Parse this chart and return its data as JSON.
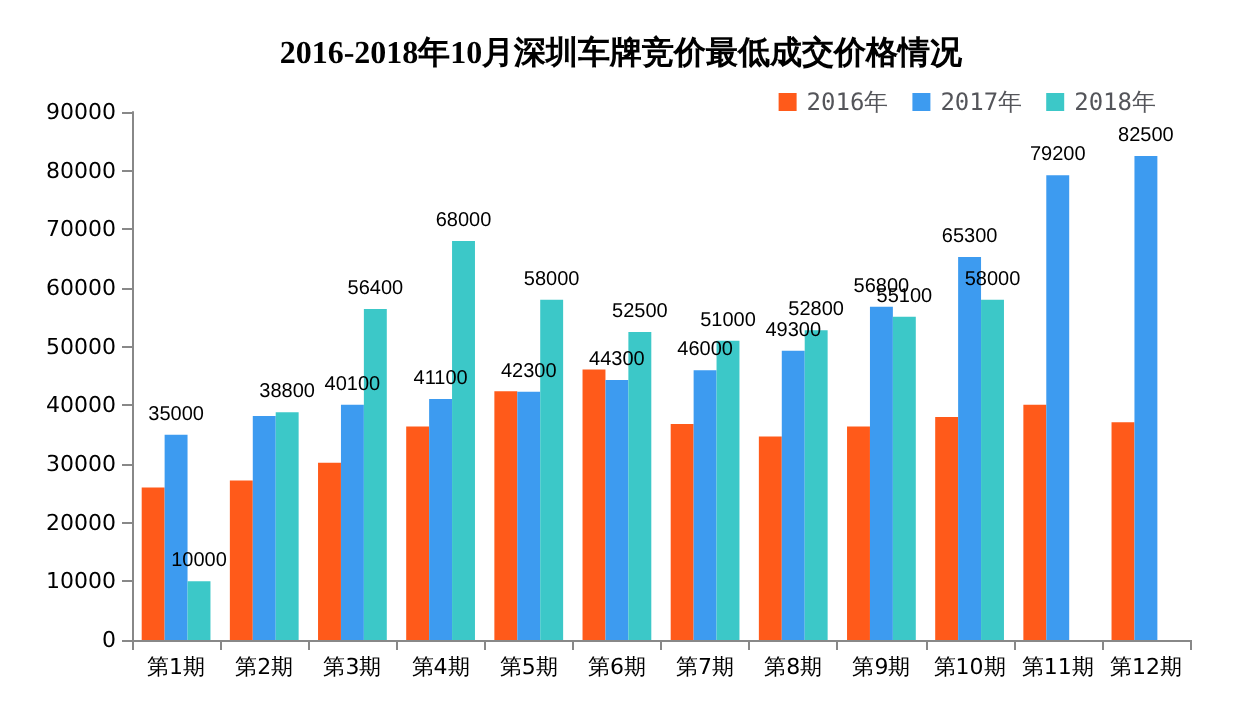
{
  "chart_data": {
    "type": "bar",
    "title": "2016-2018年10月深圳车牌竞价最低成交价格情况",
    "categories": [
      "第1期",
      "第2期",
      "第3期",
      "第4期",
      "第5期",
      "第6期",
      "第7期",
      "第8期",
      "第9期",
      "第10期",
      "第11期",
      "第12期"
    ],
    "series": [
      {
        "name": "2016年",
        "color": "#ff5a1a",
        "values": [
          26000,
          27200,
          30200,
          36400,
          42400,
          46100,
          36800,
          34700,
          36400,
          38000,
          40100,
          37100
        ]
      },
      {
        "name": "2017年",
        "color": "#3d9bf0",
        "values": [
          35000,
          38200,
          40100,
          41100,
          42300,
          44300,
          46000,
          49300,
          56800,
          65300,
          79200,
          82500
        ],
        "value_labels": [
          "35000",
          null,
          "40100",
          "41100",
          "42300",
          "44300",
          "46000",
          "49300",
          "56800",
          "65300",
          "79200",
          "82500"
        ]
      },
      {
        "name": "2018年",
        "color": "#3cc8c8",
        "values": [
          10000,
          38800,
          56400,
          68000,
          58000,
          52500,
          51000,
          52800,
          55100,
          58000,
          null,
          null
        ],
        "value_labels": [
          "10000",
          "38800",
          "56400",
          "68000",
          "58000",
          "52500",
          "51000",
          "52800",
          "55100",
          "58000",
          null,
          null
        ]
      }
    ],
    "ylim": [
      0,
      90000
    ],
    "yticks": [
      0,
      10000,
      20000,
      30000,
      40000,
      50000,
      60000,
      70000,
      80000,
      90000
    ],
    "grid": false,
    "legend": "top right"
  }
}
